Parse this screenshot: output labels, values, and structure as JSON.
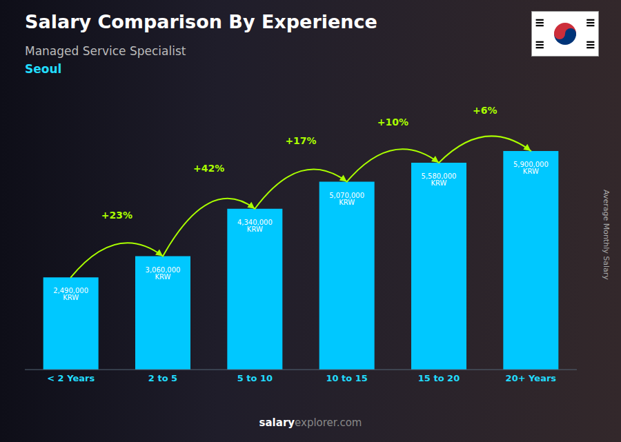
{
  "chart_data": {
    "type": "bar",
    "title": "Salary Comparison By Experience",
    "subtitle": "Managed Service Specialist",
    "city": "Seoul",
    "categories": [
      "< 2 Years",
      "2 to 5",
      "5 to 10",
      "10 to 15",
      "15 to 20",
      "20+ Years"
    ],
    "values": [
      2490000,
      3060000,
      4340000,
      5070000,
      5580000,
      5900000
    ],
    "value_labels": [
      "2,490,000 KRW",
      "3,060,000 KRW",
      "4,340,000 KRW",
      "5,070,000 KRW",
      "5,580,000 KRW",
      "5,900,000 KRW"
    ],
    "data_labels": true,
    "color": "#00C8FF",
    "ylabel": "Average Monthly Salary",
    "ylim": [
      0,
      7200000
    ],
    "tick_labels": "x",
    "grid": false,
    "annotations": [
      "+23%",
      "+42%",
      "+17%",
      "+10%",
      "+6%"
    ],
    "watermark": [
      "salary",
      "explorer.com"
    ]
  }
}
